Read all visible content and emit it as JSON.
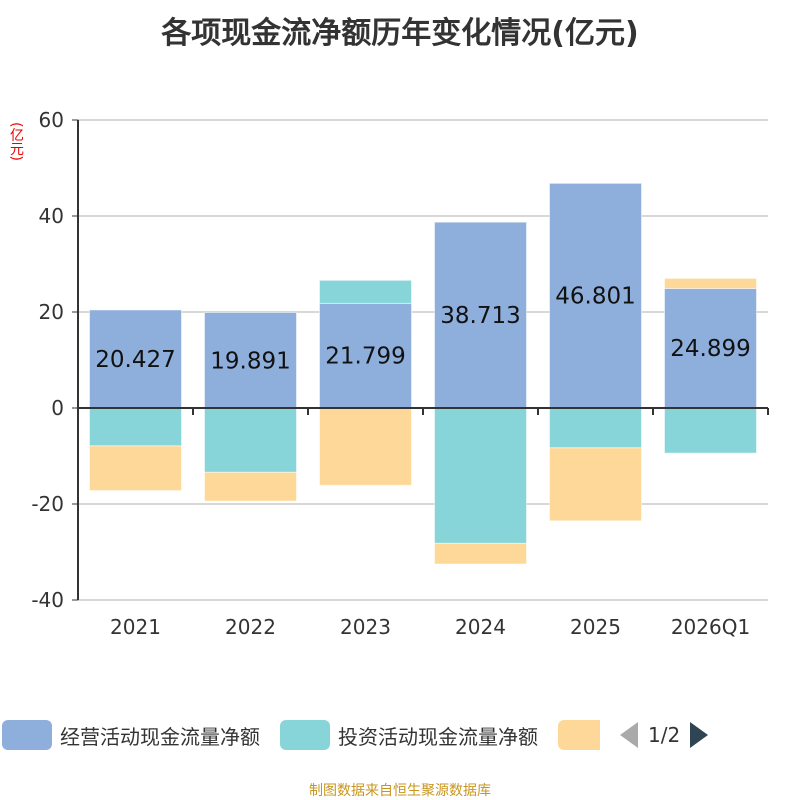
{
  "title": "各项现金流净额历年变化情况(亿元)",
  "source": "制图数据来自恒生聚源数据库",
  "legend_page": "1/2",
  "chart_data": {
    "type": "bar",
    "stacked": true,
    "title": "各项现金流净额历年变化情况(亿元)",
    "ylabel": "(亿元)",
    "ylim": [
      -40,
      60
    ],
    "yticks": [
      -40,
      -20,
      0,
      20,
      40,
      60
    ],
    "grid": true,
    "categories": [
      "2021",
      "2022",
      "2023",
      "2024",
      "2025",
      "2026Q1"
    ],
    "series": [
      {
        "name": "经营活动现金流量净额",
        "color": "#8eaedb",
        "values": [
          20.427,
          19.891,
          21.799,
          38.713,
          46.801,
          24.899
        ],
        "labels": [
          "20.427",
          "19.891",
          "21.799",
          "38.713",
          "46.801",
          "24.899"
        ]
      },
      {
        "name": "投资活动现金流量净额",
        "color": "#87d5d8",
        "values": [
          -7.9,
          -13.4,
          4.8,
          -28.2,
          -8.3,
          -9.4
        ]
      },
      {
        "name": "",
        "color": "#fed898",
        "values": [
          -9.3,
          -6.0,
          -16.1,
          -4.3,
          -15.2,
          2.1
        ]
      }
    ],
    "legend": "bottom"
  }
}
